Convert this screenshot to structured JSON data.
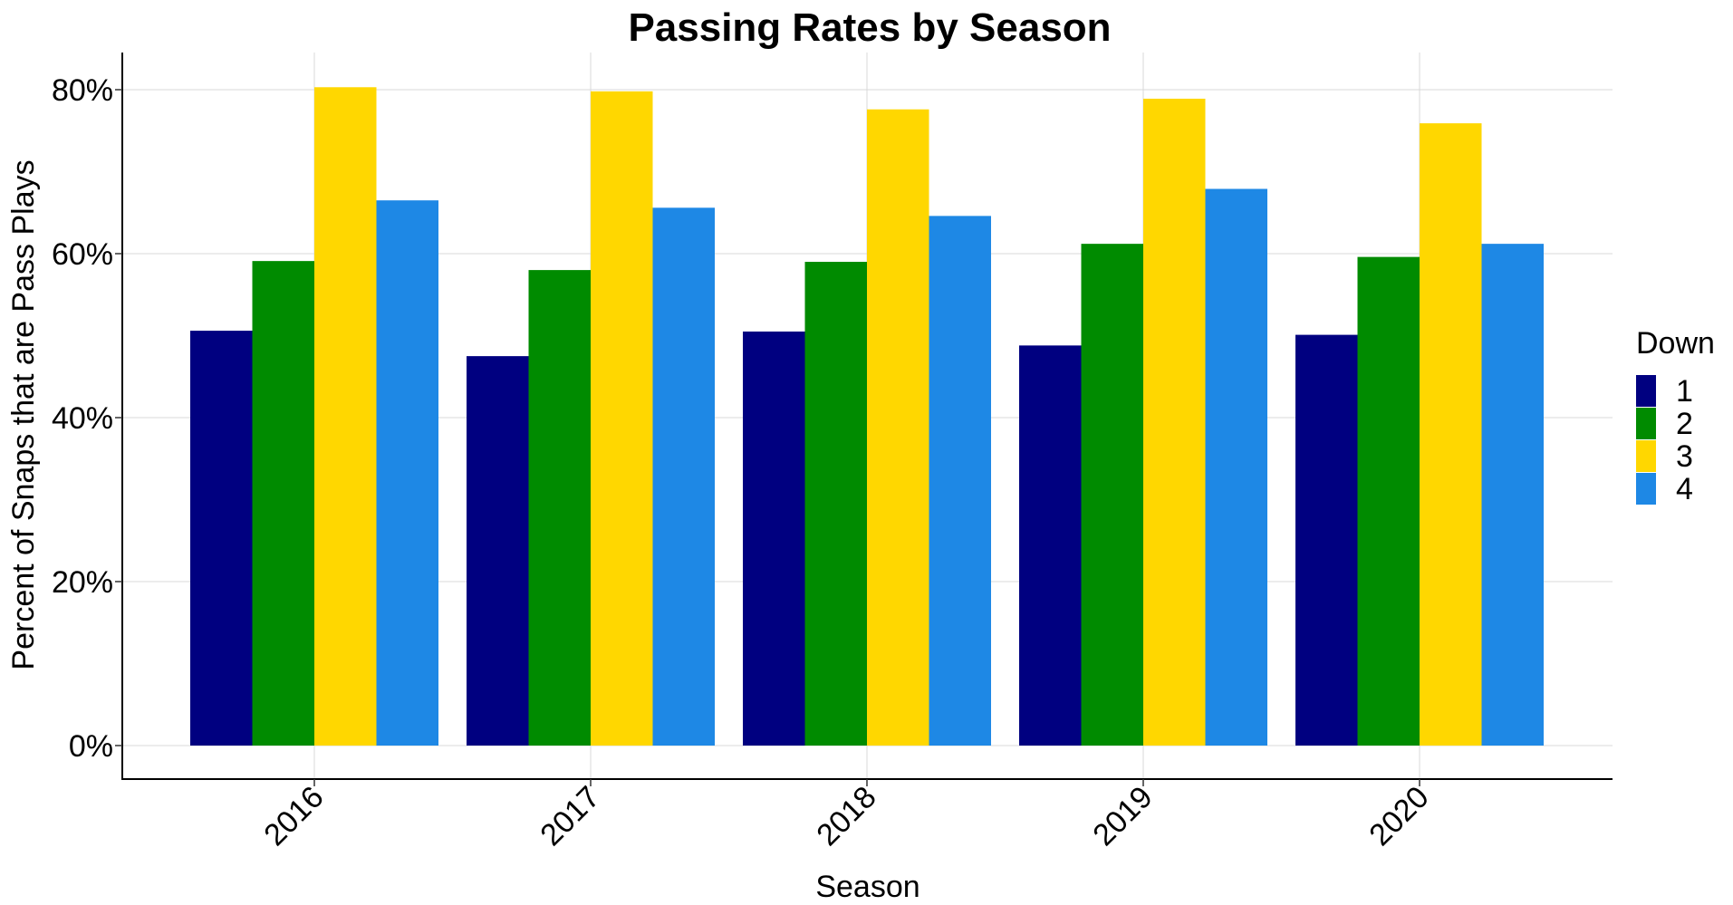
{
  "chart_data": {
    "type": "bar",
    "title": "Passing Rates by Season",
    "xlabel": "Season",
    "ylabel": "Percent of Snaps that are Pass Plays",
    "categories": [
      "2016",
      "2017",
      "2018",
      "2019",
      "2020"
    ],
    "ylim": [
      0,
      0.84
    ],
    "yticks": [
      0,
      0.2,
      0.4,
      0.6,
      0.8
    ],
    "ytick_labels": [
      "0%",
      "20%",
      "40%",
      "60%",
      "80%"
    ],
    "grid": true,
    "legend": {
      "title": "Down",
      "position": "right"
    },
    "series": [
      {
        "name": "1",
        "color": "#000080",
        "values": [
          0.506,
          0.475,
          0.505,
          0.488,
          0.501
        ]
      },
      {
        "name": "2",
        "color": "#008B00",
        "values": [
          0.591,
          0.58,
          0.59,
          0.612,
          0.596
        ]
      },
      {
        "name": "3",
        "color": "#FFD700",
        "values": [
          0.803,
          0.798,
          0.776,
          0.789,
          0.759
        ]
      },
      {
        "name": "4",
        "color": "#1E88E5",
        "values": [
          0.665,
          0.656,
          0.646,
          0.679,
          0.612
        ]
      }
    ]
  }
}
